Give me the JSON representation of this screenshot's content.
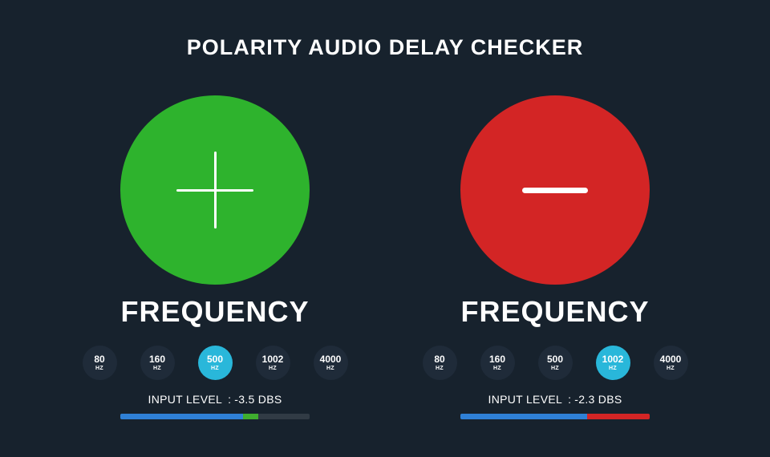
{
  "title": "POLARITY AUDIO DELAY CHECKER",
  "colors": {
    "background": "#17222d",
    "accent_selected": "#29b7da",
    "positive_circle": "#2eb32d",
    "negative_circle": "#d32525",
    "meter_blue": "#2f80d6",
    "meter_green": "#3fae2f",
    "meter_red": "#d32525",
    "meter_track": "#313b45",
    "button_bg": "#1f2b39"
  },
  "panels": [
    {
      "polarity": "positive",
      "circle_color": "#2eb32d",
      "frequency_title": "FREQUENCY",
      "buttons": [
        {
          "value": "80",
          "unit": "HZ"
        },
        {
          "value": "160",
          "unit": "HZ"
        },
        {
          "value": "500",
          "unit": "HZ"
        },
        {
          "value": "1002",
          "unit": "HZ"
        },
        {
          "value": "4000",
          "unit": "HZ"
        }
      ],
      "selected_index": 2,
      "input_level_label": "INPUT LEVEL",
      "input_level_separator": ":",
      "input_level_value": "-3.5 DBS",
      "meter_segments": [
        {
          "color": "#2f80d6",
          "pct": 65
        },
        {
          "color": "#3fae2f",
          "pct": 8
        },
        {
          "color": "#313b45",
          "pct": 27
        }
      ]
    },
    {
      "polarity": "negative",
      "circle_color": "#d32525",
      "frequency_title": "FREQUENCY",
      "buttons": [
        {
          "value": "80",
          "unit": "HZ"
        },
        {
          "value": "160",
          "unit": "HZ"
        },
        {
          "value": "500",
          "unit": "HZ"
        },
        {
          "value": "1002",
          "unit": "HZ"
        },
        {
          "value": "4000",
          "unit": "HZ"
        }
      ],
      "selected_index": 3,
      "input_level_label": "INPUT LEVEL",
      "input_level_separator": ":",
      "input_level_value": "-2.3 DBS",
      "meter_segments": [
        {
          "color": "#2f80d6",
          "pct": 67
        },
        {
          "color": "#d32525",
          "pct": 33
        }
      ]
    }
  ]
}
